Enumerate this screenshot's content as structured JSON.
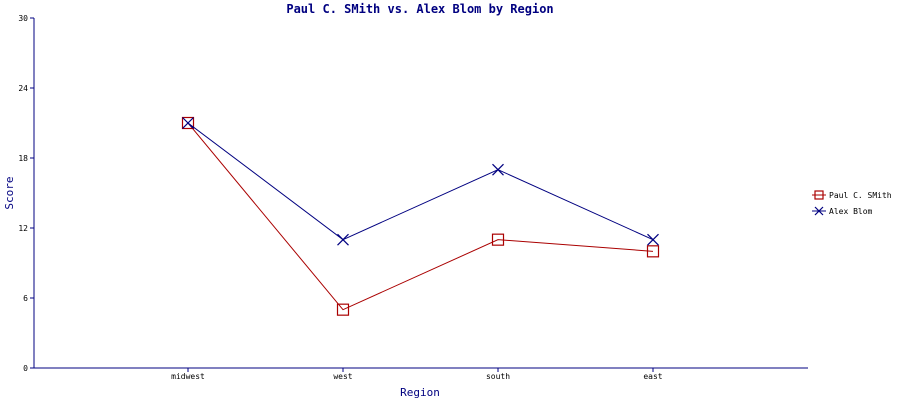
{
  "chart_data": {
    "type": "line",
    "title": "Paul C. SMith vs. Alex Blom by Region",
    "xlabel": "Region",
    "ylabel": "Score",
    "categories": [
      "midwest",
      "west",
      "south",
      "east"
    ],
    "ylim": [
      0,
      30
    ],
    "yticks": [
      0,
      6,
      12,
      18,
      24,
      30
    ],
    "grid": false,
    "legend_position": "right",
    "series": [
      {
        "name": "Paul C. SMith",
        "values": [
          21,
          5,
          11,
          10
        ],
        "color": "#aa0000",
        "marker": "square-icon"
      },
      {
        "name": "Alex Blom",
        "values": [
          21,
          11,
          17,
          11
        ],
        "color": "#000080",
        "marker": "x-icon"
      }
    ],
    "axis_color": "#000080"
  }
}
